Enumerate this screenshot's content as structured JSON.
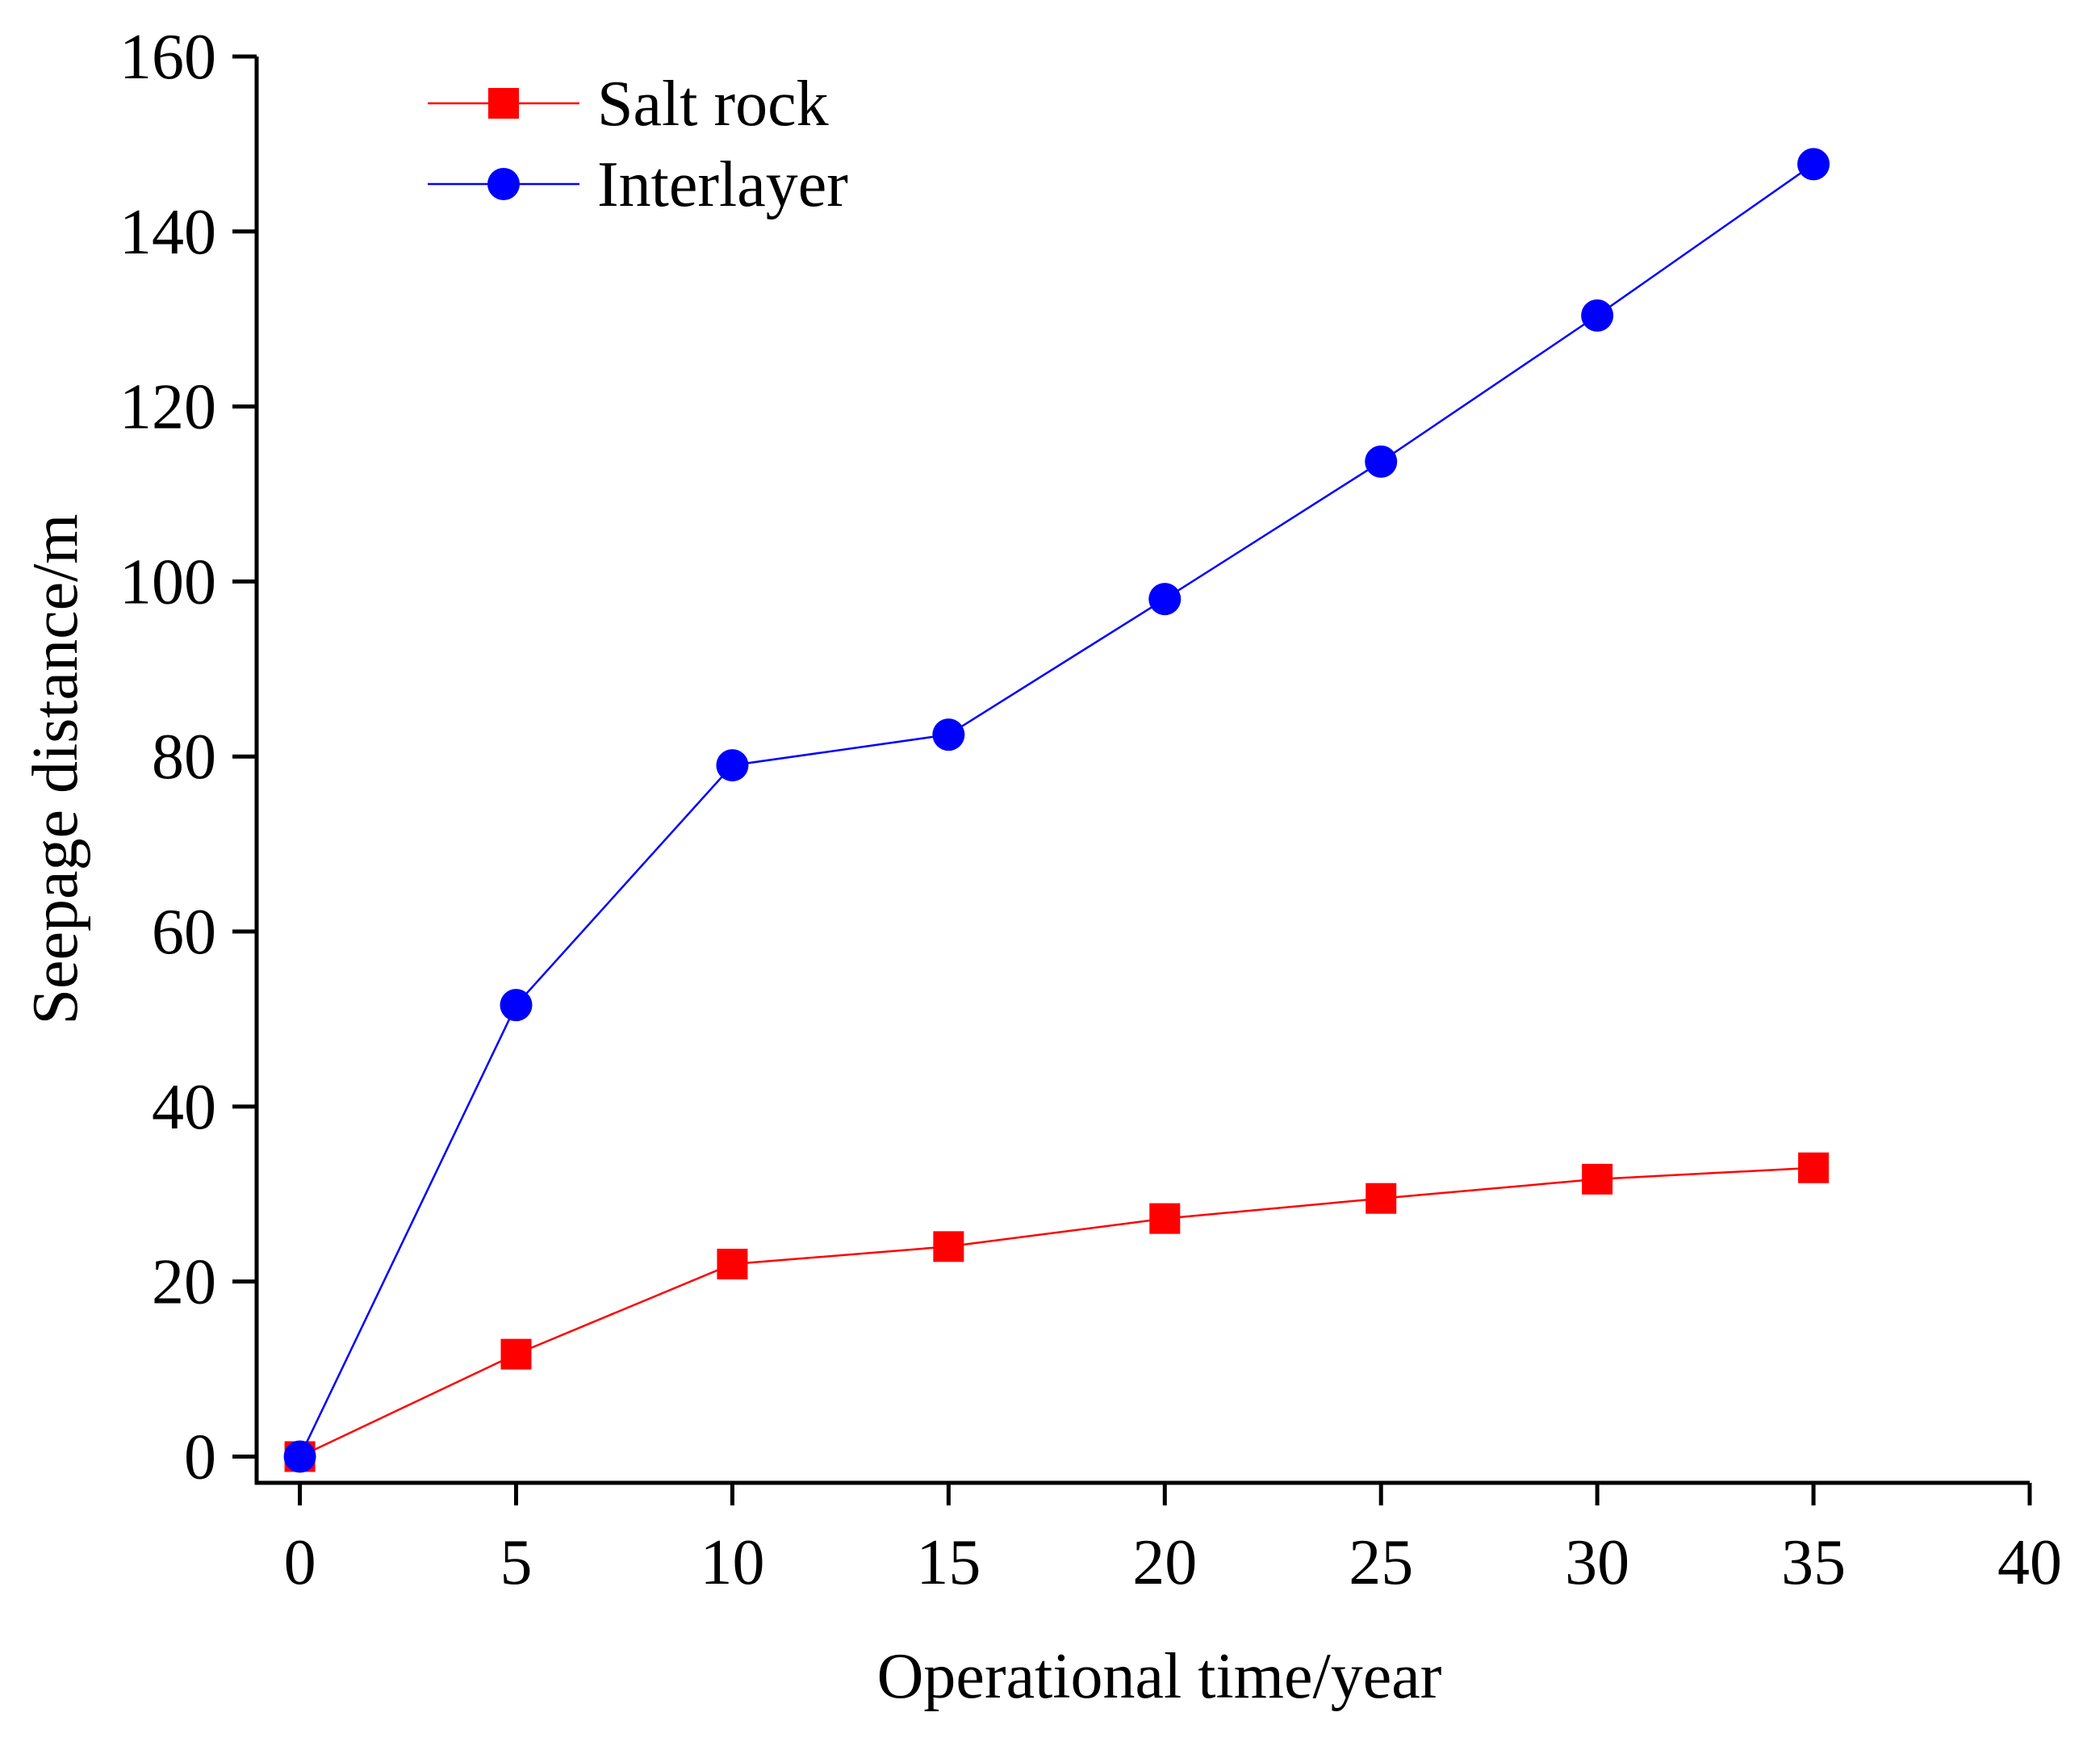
{
  "chart_data": {
    "type": "line",
    "title": "",
    "xlabel": "Operational time/year",
    "ylabel": "Seepage distance/m",
    "xlim": [
      -1,
      40
    ],
    "ylim": [
      -3,
      160
    ],
    "xticks": [
      0,
      5,
      10,
      15,
      20,
      25,
      30,
      35,
      40
    ],
    "yticks": [
      0,
      20,
      40,
      60,
      80,
      100,
      120,
      140,
      160
    ],
    "grid": false,
    "legend_position": "top-left",
    "series": [
      {
        "name": "Salt rock",
        "color": "#ff0000",
        "marker": "square",
        "x": [
          0,
          5,
          10,
          15,
          20,
          25,
          30,
          35
        ],
        "y": [
          0,
          11.7,
          22,
          24,
          27.2,
          29.5,
          31.7,
          33
        ]
      },
      {
        "name": "Interlayer",
        "color": "#0000ff",
        "marker": "circle",
        "x": [
          0,
          5,
          10,
          15,
          20,
          25,
          30,
          35
        ],
        "y": [
          0,
          51.6,
          79,
          82.5,
          98,
          113.7,
          130.4,
          147.7
        ]
      }
    ]
  }
}
